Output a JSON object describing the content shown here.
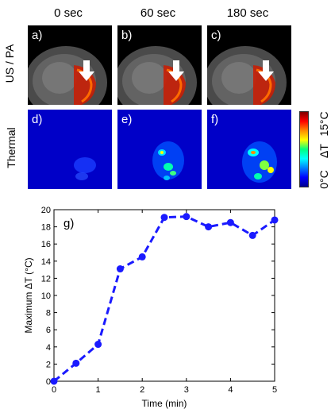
{
  "columns": [
    "0 sec",
    "60 sec",
    "180 sec"
  ],
  "rows": [
    "US / PA",
    "Thermal"
  ],
  "panels": [
    "a)",
    "b)",
    "c)",
    "d)",
    "e)",
    "f)"
  ],
  "colorbar": {
    "min_label": "0°C",
    "mid_label": "ΔT",
    "max_label": "15°C"
  },
  "chart_data": {
    "type": "line",
    "panel_label": "g)",
    "xlabel": "Time (min)",
    "ylabel": "Maximum ΔT (°C)",
    "xlim": [
      0,
      5
    ],
    "ylim": [
      0,
      20
    ],
    "xticks": [
      "0",
      "1",
      "2",
      "3",
      "4",
      "5"
    ],
    "yticks": [
      "0",
      "2",
      "4",
      "6",
      "8",
      "10",
      "12",
      "14",
      "16",
      "18",
      "20"
    ],
    "x": [
      0,
      0.5,
      1,
      1.5,
      2,
      2.5,
      3,
      3.5,
      4,
      4.5,
      5
    ],
    "y": [
      0,
      2.1,
      4.3,
      13.1,
      14.5,
      19.1,
      19.2,
      18.0,
      18.5,
      17.0,
      18.8
    ],
    "color": "#1a1aff"
  }
}
